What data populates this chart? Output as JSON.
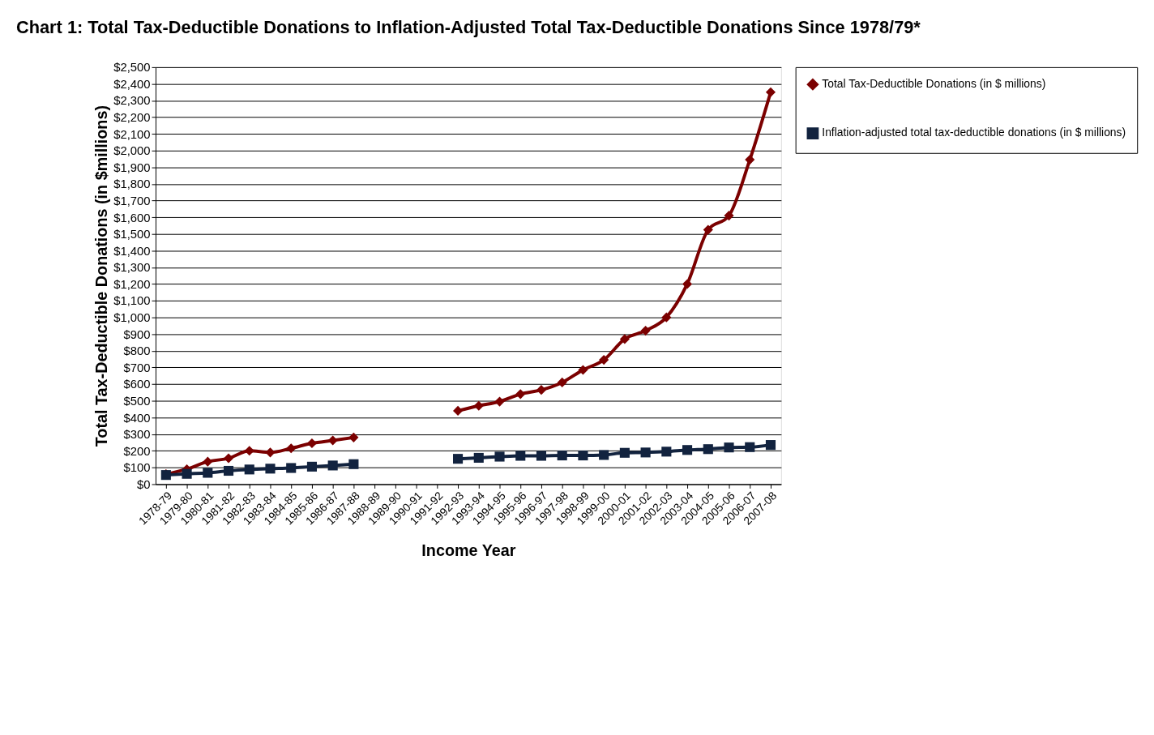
{
  "chart_data": {
    "type": "line",
    "title": "Chart 1: Total Tax-Deductible Donations to Inflation-Adjusted Total Tax-Deductible Donations Since 1978/79*",
    "xlabel": "Income  Year",
    "ylabel": "Total Tax-Deductible Donations (in $millions)",
    "categories": [
      "1978-79",
      "1979-80",
      "1980-81",
      "1981-82",
      "1982-83",
      "1983-84",
      "1984-85",
      "1985-86",
      "1986-87",
      "1987-88",
      "1988-89",
      "1989-90",
      "1990-91",
      "1991-92",
      "1992-93",
      "1993-94",
      "1994-95",
      "1995-96",
      "1996-97",
      "1997-98",
      "1998-99",
      "1999-00",
      "2000-01",
      "2001-02",
      "2002-03",
      "2003-04",
      "2004-05",
      "2005-06",
      "2006-07",
      "2007-08"
    ],
    "series": [
      {
        "name": "Total Tax-Deductible Donations (in $ millions)",
        "color": "#7b0000",
        "marker": "diamond",
        "values": [
          60,
          90,
          135,
          155,
          200,
          190,
          215,
          245,
          262,
          280,
          null,
          null,
          null,
          null,
          440,
          470,
          495,
          540,
          565,
          610,
          685,
          745,
          870,
          920,
          1000,
          1200,
          1525,
          1610,
          1945,
          2350
        ]
      },
      {
        "name": "Inflation-adjusted total tax-deductible donations (in $ millions)",
        "color": "#12233f",
        "marker": "square",
        "values": [
          55,
          62,
          68,
          80,
          88,
          93,
          97,
          105,
          112,
          120,
          null,
          null,
          null,
          null,
          152,
          158,
          165,
          170,
          170,
          172,
          172,
          175,
          188,
          190,
          195,
          205,
          210,
          220,
          222,
          235
        ]
      }
    ],
    "ylim": [
      0,
      2500
    ],
    "yticks": [
      {
        "value": 0,
        "label": "$0"
      },
      {
        "value": 100,
        "label": "$100"
      },
      {
        "value": 200,
        "label": "$200"
      },
      {
        "value": 300,
        "label": "$300"
      },
      {
        "value": 400,
        "label": "$400"
      },
      {
        "value": 500,
        "label": "$500"
      },
      {
        "value": 600,
        "label": "$600"
      },
      {
        "value": 700,
        "label": "$700"
      },
      {
        "value": 800,
        "label": "$800"
      },
      {
        "value": 900,
        "label": "$900"
      },
      {
        "value": 1000,
        "label": "$1,000"
      },
      {
        "value": 1100,
        "label": "$1,100"
      },
      {
        "value": 1200,
        "label": "$1,200"
      },
      {
        "value": 1300,
        "label": "$1,300"
      },
      {
        "value": 1400,
        "label": "$1,400"
      },
      {
        "value": 1500,
        "label": "$1,500"
      },
      {
        "value": 1600,
        "label": "$1,600"
      },
      {
        "value": 1700,
        "label": "$1,700"
      },
      {
        "value": 1800,
        "label": "$1,800"
      },
      {
        "value": 1900,
        "label": "$1,900"
      },
      {
        "value": 2000,
        "label": "$2,000"
      },
      {
        "value": 2100,
        "label": "$2,100"
      },
      {
        "value": 2200,
        "label": "$2,200"
      },
      {
        "value": 2300,
        "label": "$2,300"
      },
      {
        "value": 2400,
        "label": "$2,400"
      },
      {
        "value": 2500,
        "label": "$2,500"
      }
    ],
    "grid": "y",
    "legend": "right"
  }
}
